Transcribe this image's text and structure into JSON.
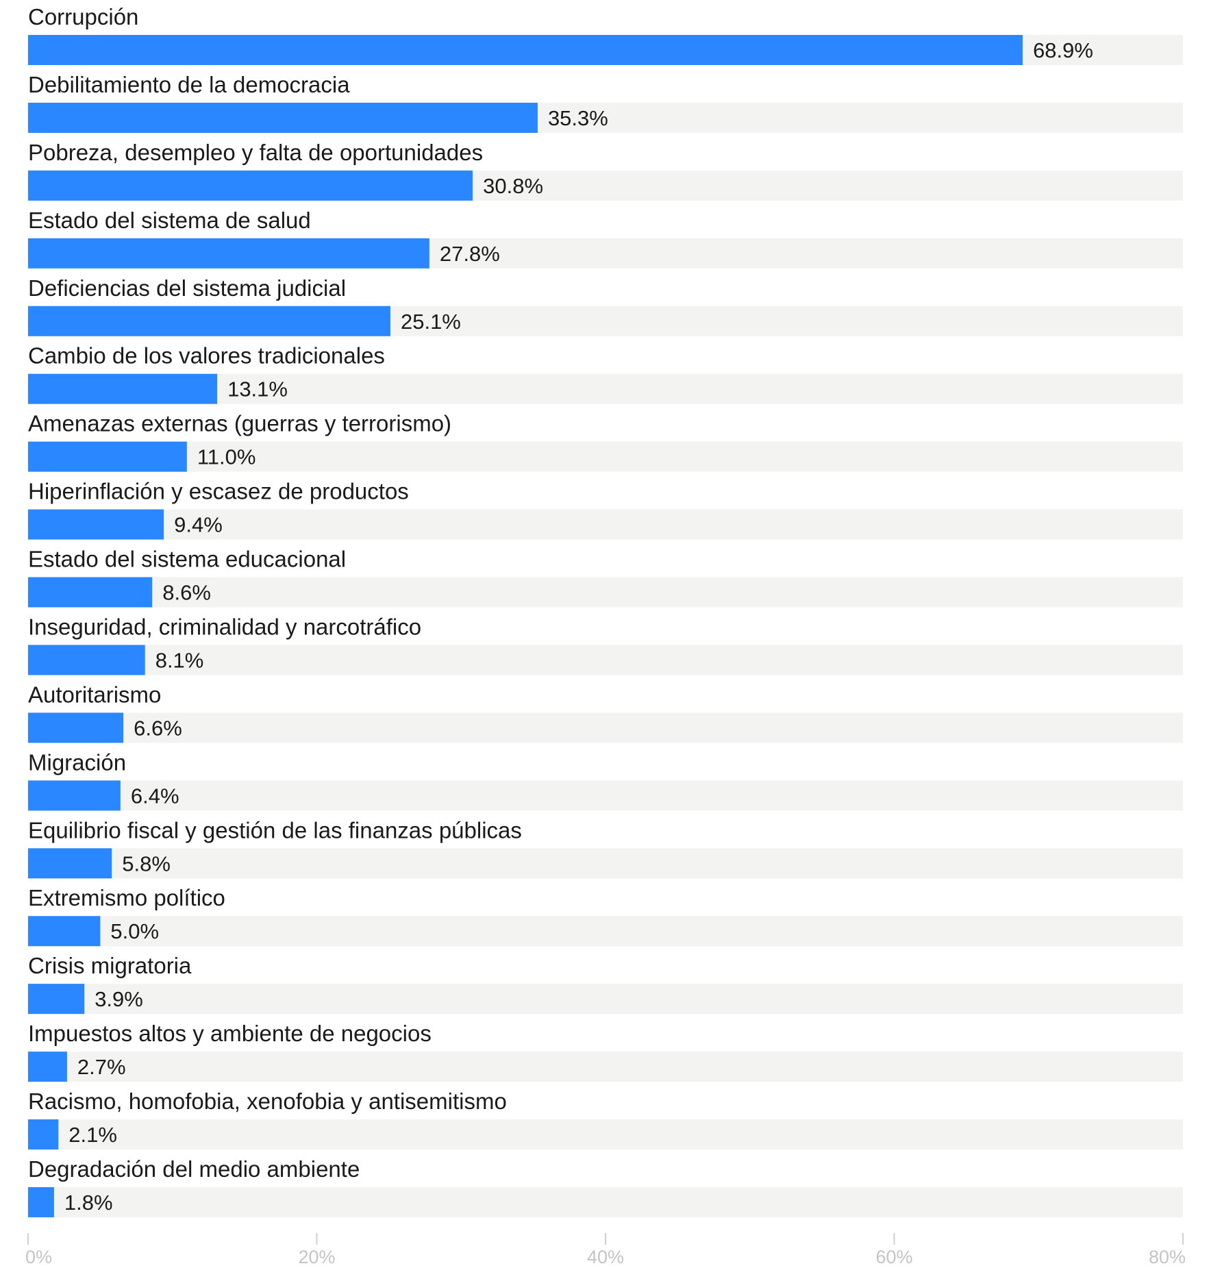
{
  "chart_data": {
    "type": "bar",
    "orientation": "horizontal",
    "categories": [
      "Corrupción",
      "Debilitamiento de la democracia",
      "Pobreza, desempleo y falta de oportunidades",
      "Estado del sistema de salud",
      "Deficiencias del sistema judicial",
      "Cambio de los valores tradicionales",
      "Amenazas externas (guerras y terrorismo)",
      "Hiperinflación y escasez de productos",
      "Estado del sistema educacional",
      "Inseguridad, criminalidad y narcotráfico",
      "Autoritarismo",
      "Migración",
      "Equilibrio fiscal y gestión de las finanzas públicas",
      "Extremismo político",
      "Crisis migratoria",
      "Impuestos altos y ambiente de negocios",
      "Racismo, homofobia, xenofobia y antisemitismo",
      "Degradación del medio ambiente"
    ],
    "values": [
      68.9,
      35.3,
      30.8,
      27.8,
      25.1,
      13.1,
      11.0,
      9.4,
      8.6,
      8.1,
      6.6,
      6.4,
      5.8,
      5.0,
      3.9,
      2.7,
      2.1,
      1.8
    ],
    "value_labels": [
      "68.9%",
      "35.3%",
      "30.8%",
      "27.8%",
      "25.1%",
      "13.1%",
      "11.0%",
      "9.4%",
      "8.6%",
      "8.1%",
      "6.6%",
      "6.4%",
      "5.8%",
      "5.0%",
      "3.9%",
      "2.7%",
      "2.1%",
      "1.8%"
    ],
    "xlim": [
      0,
      80
    ],
    "x_ticks": [
      0,
      20,
      40,
      60,
      80
    ],
    "x_tick_labels": [
      "0%",
      "20%",
      "40%",
      "60%",
      "80%"
    ],
    "title": "",
    "xlabel": "",
    "ylabel": "",
    "grid": false,
    "legend": "none",
    "colors": {
      "bar": "#2b87ff",
      "track": "#f3f3f1",
      "category_text": "#1a1a1a",
      "value_text": "#1a1a1a",
      "tick_text": "#c4c4c4",
      "tick_mark": "#cfcfcf"
    }
  }
}
